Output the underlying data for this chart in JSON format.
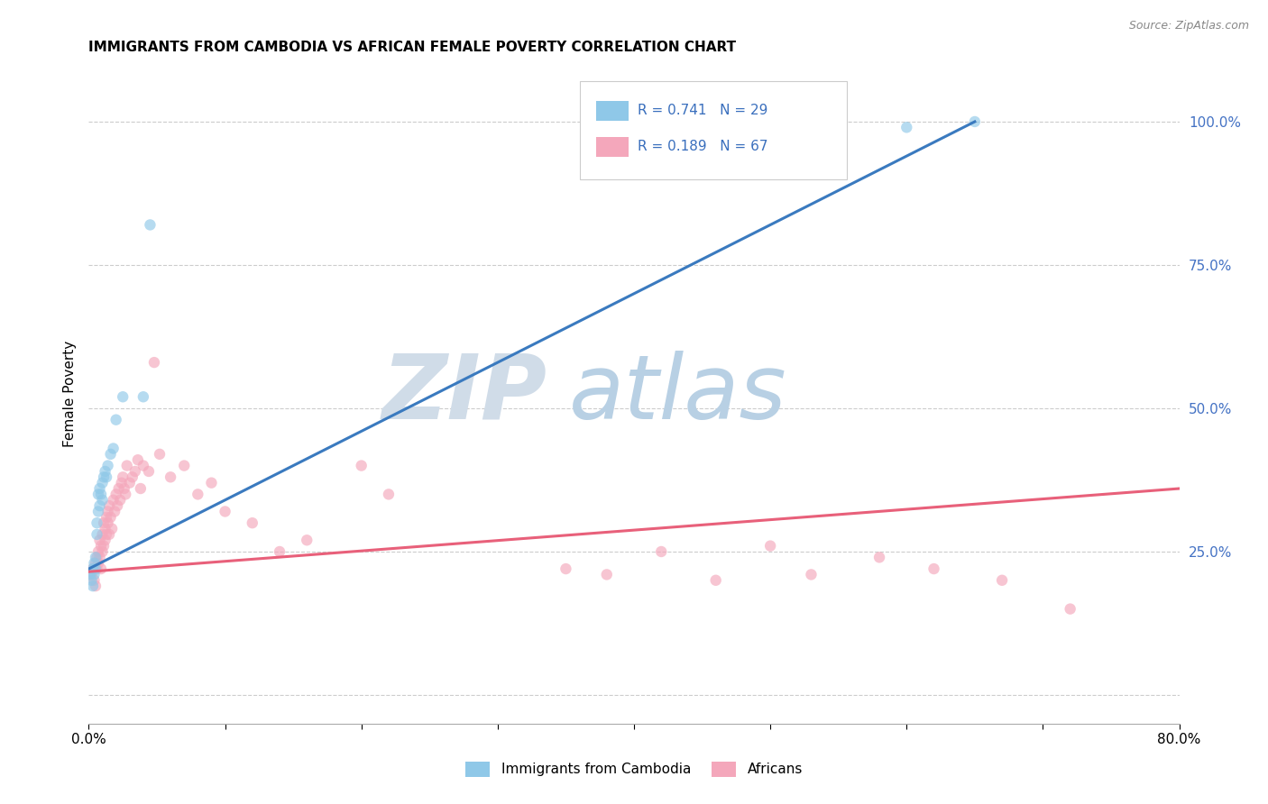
{
  "title": "IMMIGRANTS FROM CAMBODIA VS AFRICAN FEMALE POVERTY CORRELATION CHART",
  "source": "Source: ZipAtlas.com",
  "ylabel": "Female Poverty",
  "xlim": [
    0.0,
    0.8
  ],
  "ylim": [
    -0.05,
    1.1
  ],
  "color_cambodia": "#8fc8e8",
  "color_africa": "#f4a7bb",
  "color_line_cambodia": "#3a7abf",
  "color_line_africa": "#e8607a",
  "watermark_zip": "ZIP",
  "watermark_atlas": "atlas",
  "watermark_color_zip": "#c8dce8",
  "watermark_color_atlas": "#a8c8e0",
  "label_cambodia": "Immigrants from Cambodia",
  "label_africa": "Africans",
  "legend_text1": "R = 0.741   N = 29",
  "legend_text2": "R = 0.189   N = 67",
  "legend_color": "#3a6fbd",
  "cambodia_scatter_x": [
    0.001,
    0.002,
    0.003,
    0.003,
    0.004,
    0.004,
    0.005,
    0.005,
    0.006,
    0.006,
    0.007,
    0.007,
    0.008,
    0.008,
    0.009,
    0.01,
    0.01,
    0.011,
    0.012,
    0.013,
    0.014,
    0.016,
    0.018,
    0.02,
    0.025,
    0.04,
    0.045,
    0.6,
    0.65
  ],
  "cambodia_scatter_y": [
    0.21,
    0.2,
    0.22,
    0.19,
    0.21,
    0.23,
    0.24,
    0.22,
    0.3,
    0.28,
    0.32,
    0.35,
    0.33,
    0.36,
    0.35,
    0.37,
    0.34,
    0.38,
    0.39,
    0.38,
    0.4,
    0.42,
    0.43,
    0.48,
    0.52,
    0.52,
    0.82,
    0.99,
    1.0
  ],
  "africa_scatter_x": [
    0.002,
    0.003,
    0.004,
    0.005,
    0.005,
    0.006,
    0.006,
    0.007,
    0.007,
    0.008,
    0.008,
    0.009,
    0.009,
    0.01,
    0.01,
    0.011,
    0.011,
    0.012,
    0.012,
    0.013,
    0.013,
    0.014,
    0.014,
    0.015,
    0.015,
    0.016,
    0.017,
    0.018,
    0.019,
    0.02,
    0.021,
    0.022,
    0.023,
    0.024,
    0.025,
    0.026,
    0.027,
    0.028,
    0.03,
    0.032,
    0.034,
    0.036,
    0.038,
    0.04,
    0.044,
    0.048,
    0.052,
    0.06,
    0.07,
    0.08,
    0.09,
    0.1,
    0.12,
    0.14,
    0.16,
    0.2,
    0.22,
    0.35,
    0.38,
    0.42,
    0.46,
    0.5,
    0.53,
    0.58,
    0.62,
    0.67,
    0.72
  ],
  "africa_scatter_y": [
    0.21,
    0.22,
    0.2,
    0.23,
    0.19,
    0.22,
    0.24,
    0.25,
    0.23,
    0.27,
    0.24,
    0.26,
    0.22,
    0.28,
    0.25,
    0.26,
    0.3,
    0.29,
    0.27,
    0.28,
    0.31,
    0.3,
    0.32,
    0.28,
    0.33,
    0.31,
    0.29,
    0.34,
    0.32,
    0.35,
    0.33,
    0.36,
    0.34,
    0.37,
    0.38,
    0.36,
    0.35,
    0.4,
    0.37,
    0.38,
    0.39,
    0.41,
    0.36,
    0.4,
    0.39,
    0.58,
    0.42,
    0.38,
    0.4,
    0.35,
    0.37,
    0.32,
    0.3,
    0.25,
    0.27,
    0.4,
    0.35,
    0.22,
    0.21,
    0.25,
    0.2,
    0.26,
    0.21,
    0.24,
    0.22,
    0.2,
    0.15
  ],
  "cambodia_line_x": [
    0.0,
    0.65
  ],
  "cambodia_line_y": [
    0.22,
    1.0
  ],
  "africa_line_x": [
    0.0,
    0.8
  ],
  "africa_line_y": [
    0.215,
    0.36
  ]
}
